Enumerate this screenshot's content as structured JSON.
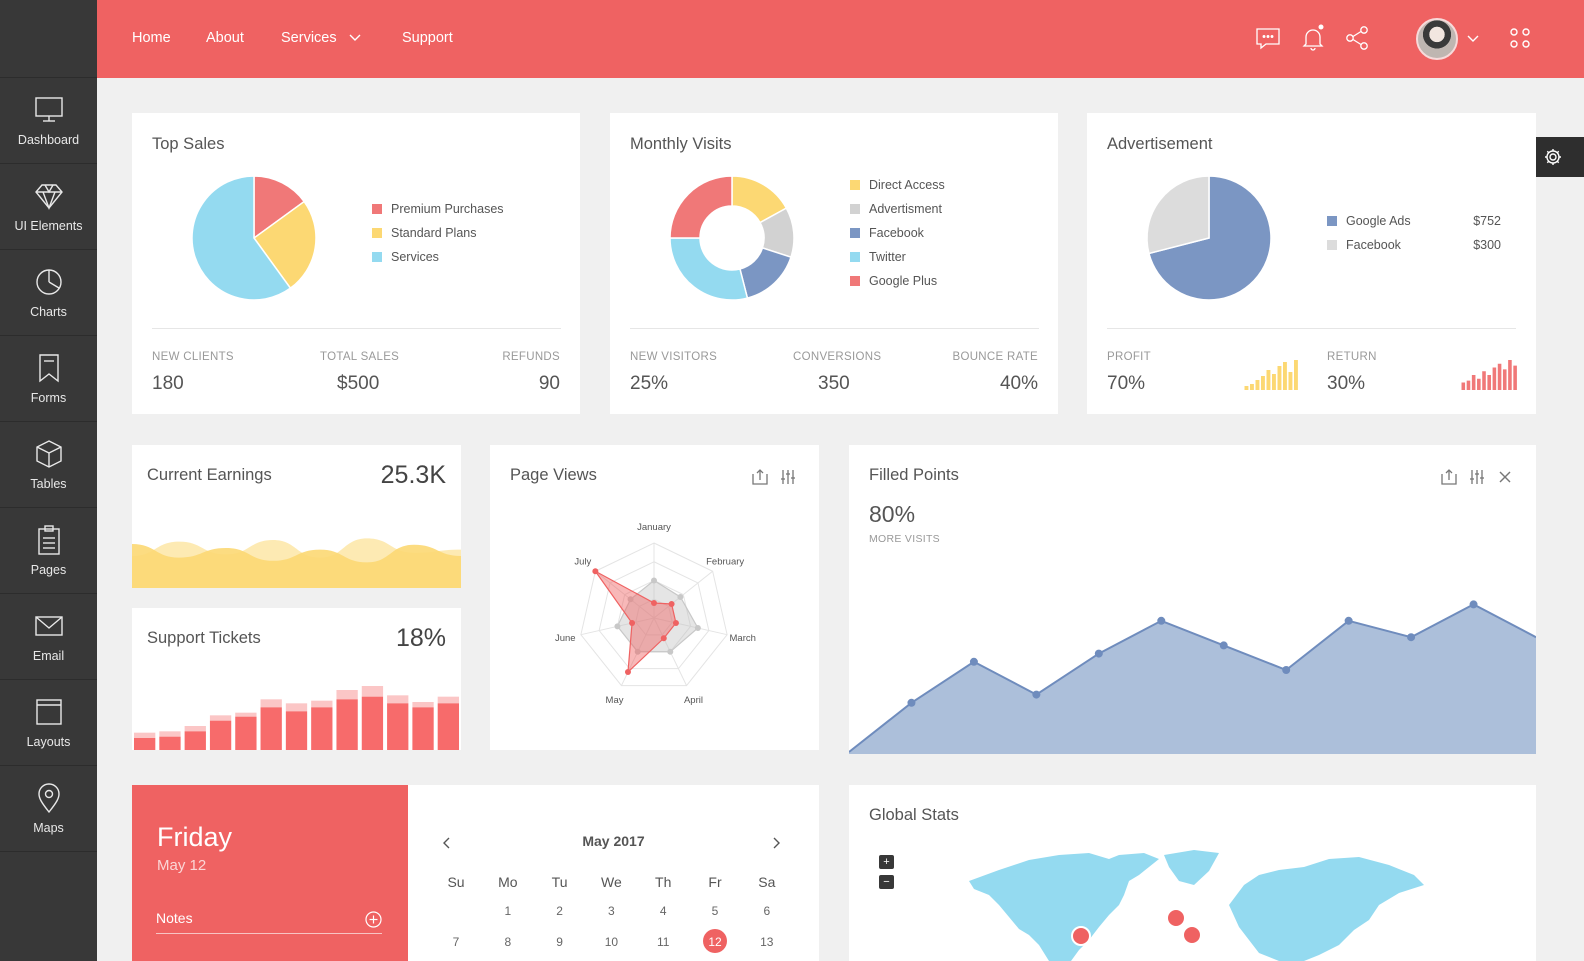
{
  "colors": {
    "accent": "#ef6262",
    "sidebar": "#383838",
    "blue": "#7b96c3",
    "sky": "#8ed8f0",
    "yellow": "#fcd873",
    "grey": "#d2d2d2",
    "salmon": "#f07878"
  },
  "sidebar": {
    "items": [
      {
        "label": "Dashboard",
        "icon": "monitor-icon"
      },
      {
        "label": "UI Elements",
        "icon": "diamond-icon"
      },
      {
        "label": "Charts",
        "icon": "pie-chart-icon"
      },
      {
        "label": "Forms",
        "icon": "bookmark-icon"
      },
      {
        "label": "Tables",
        "icon": "cube-icon"
      },
      {
        "label": "Pages",
        "icon": "clipboard-icon"
      },
      {
        "label": "Email",
        "icon": "envelope-icon"
      },
      {
        "label": "Layouts",
        "icon": "window-icon"
      },
      {
        "label": "Maps",
        "icon": "map-pin-icon"
      }
    ]
  },
  "topnav": {
    "home": "Home",
    "about": "About",
    "services": "Services",
    "support": "Support",
    "icons": [
      "chat-icon",
      "bell-icon",
      "share-icon",
      "user-avatar",
      "chevron-down-icon",
      "apps-grid-icon"
    ]
  },
  "top_sales": {
    "title": "Top Sales",
    "legend": [
      "Premium Purchases",
      "Standard Plans",
      "Services"
    ],
    "stats": [
      {
        "label": "NEW CLIENTS",
        "value": "180"
      },
      {
        "label": "TOTAL SALES",
        "value": "$500"
      },
      {
        "label": "REFUNDS",
        "value": "90"
      }
    ]
  },
  "monthly_visits": {
    "title": "Monthly Visits",
    "legend": [
      "Direct Access",
      "Advertisment",
      "Facebook",
      "Twitter",
      "Google Plus"
    ],
    "stats": [
      {
        "label": "NEW VISITORS",
        "value": "25%"
      },
      {
        "label": "CONVERSIONS",
        "value": "350"
      },
      {
        "label": "BOUNCE RATE",
        "value": "40%"
      }
    ]
  },
  "advertisement": {
    "title": "Advertisement",
    "legend": [
      {
        "name": "Google Ads",
        "value": "$752"
      },
      {
        "name": "Facebook",
        "value": "$300"
      }
    ],
    "stats": [
      {
        "label": "PROFIT",
        "value": "70%"
      },
      {
        "label": "RETURN",
        "value": "30%"
      }
    ]
  },
  "current_earnings": {
    "title": "Current Earnings",
    "value": "25.3K"
  },
  "support_tickets": {
    "title": "Support Tickets",
    "value": "18%"
  },
  "page_views": {
    "title": "Page Views"
  },
  "filled_points": {
    "title": "Filled Points",
    "value": "80%",
    "sublabel": "MORE VISITS"
  },
  "calendar": {
    "day_name": "Friday",
    "date": "May 12",
    "notes_label": "Notes",
    "month": "May 2017",
    "weekdays": [
      "Su",
      "Mo",
      "Tu",
      "We",
      "Th",
      "Fr",
      "Sa"
    ],
    "week1": [
      "",
      "1",
      "2",
      "3",
      "4",
      "5",
      "6"
    ],
    "week2": [
      "7",
      "8",
      "9",
      "10",
      "11",
      "12",
      "13"
    ],
    "selected": "12"
  },
  "global_stats": {
    "title": "Global Stats",
    "zoom_in": "+",
    "zoom_out": "−"
  },
  "chart_data": [
    {
      "type": "pie",
      "title": "Top Sales",
      "categories": [
        "Premium Purchases",
        "Standard Plans",
        "Services"
      ],
      "values": [
        15,
        25,
        60
      ],
      "colors": [
        "#f07878",
        "#fcd873",
        "#94daf0"
      ]
    },
    {
      "type": "pie",
      "title": "Monthly Visits",
      "categories": [
        "Direct Access",
        "Advertisment",
        "Facebook",
        "Twitter",
        "Google Plus"
      ],
      "values": [
        17,
        13,
        16,
        29,
        25
      ],
      "colors": [
        "#fcd873",
        "#d2d2d2",
        "#7b96c3",
        "#94daf0",
        "#f07878"
      ]
    },
    {
      "type": "pie",
      "title": "Advertisement",
      "categories": [
        "Google Ads",
        "Facebook"
      ],
      "values": [
        71,
        29
      ],
      "colors": [
        "#7b96c3",
        "#dcdcdc"
      ]
    },
    {
      "type": "bar",
      "title": "PROFIT",
      "values": [
        2,
        3,
        5,
        7,
        10,
        8,
        12,
        14,
        9,
        15
      ],
      "colors": [
        "#fcd873"
      ]
    },
    {
      "type": "bar",
      "title": "RETURN",
      "values": [
        4,
        5,
        8,
        6,
        10,
        8,
        12,
        14,
        11,
        16,
        13
      ],
      "colors": [
        "#f07878"
      ]
    },
    {
      "type": "area",
      "title": "Current Earnings",
      "series": [
        {
          "values": [
            40,
            58,
            42,
            60,
            38,
            62,
            44,
            48
          ]
        },
        {
          "values": [
            55,
            38,
            50,
            34,
            48,
            32,
            54,
            40
          ]
        }
      ],
      "ylim": [
        0,
        100
      ]
    },
    {
      "type": "bar",
      "title": "Support Tickets",
      "series": [
        {
          "name": "tickets",
          "values": [
            9,
            10,
            14,
            22,
            25,
            32,
            29,
            32,
            38,
            40,
            35,
            32,
            35
          ]
        },
        {
          "name": "extra",
          "values": [
            4,
            4,
            4,
            4,
            3,
            6,
            6,
            5,
            7,
            8,
            6,
            4,
            5
          ]
        }
      ],
      "ylim": [
        0,
        60
      ]
    },
    {
      "type": "radar",
      "title": "Page Views",
      "categories": [
        "January",
        "February",
        "March",
        "April",
        "May",
        "June",
        "July"
      ],
      "series": [
        {
          "values": [
            20,
            30,
            30,
            30,
            80,
            30,
            100
          ]
        },
        {
          "values": [
            50,
            45,
            60,
            50,
            50,
            50,
            40
          ]
        }
      ],
      "ylim": [
        0,
        100
      ]
    },
    {
      "type": "area",
      "title": "Filled Points",
      "x": [
        0,
        1,
        2,
        3,
        4,
        5,
        6,
        7,
        8,
        9,
        10,
        11
      ],
      "values": [
        0,
        30,
        55,
        35,
        60,
        80,
        65,
        50,
        80,
        70,
        90,
        70
      ],
      "ylim": [
        0,
        100
      ]
    }
  ]
}
